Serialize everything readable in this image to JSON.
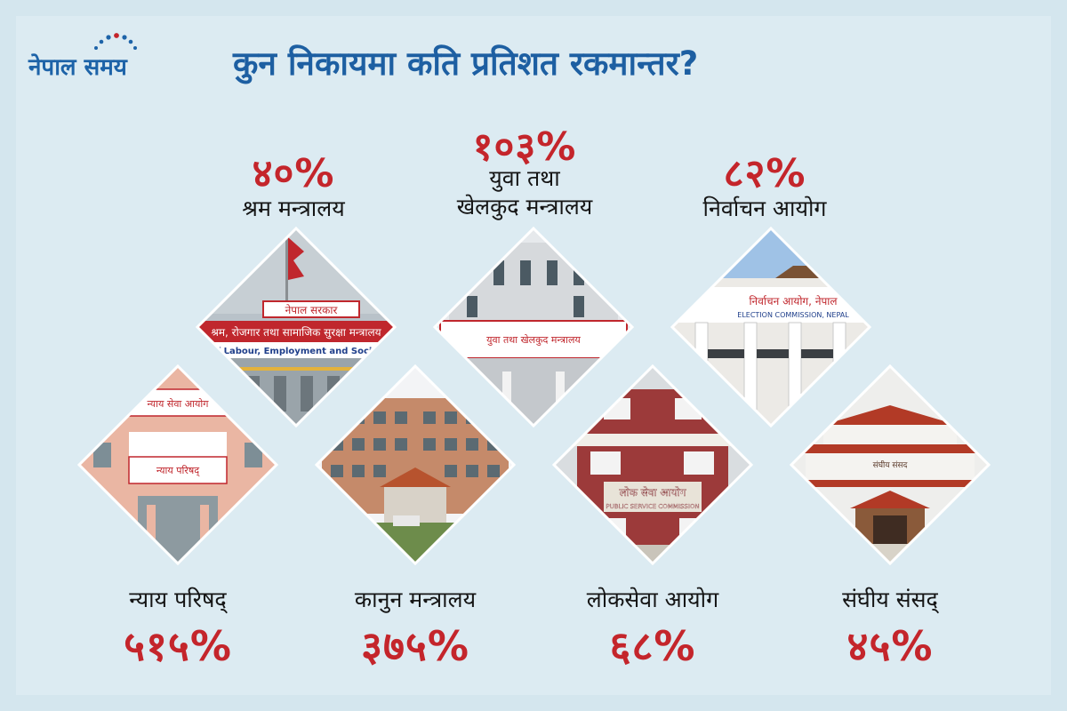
{
  "brand": {
    "name": "नेपाल समय"
  },
  "title": "कुन निकायमा कति प्रतिशत रकमान्तर?",
  "colors": {
    "title": "#1d5fa2",
    "percent": "#c4252b",
    "background": "#dcebf2"
  },
  "items": [
    {
      "percent": "४०%",
      "label": "श्रम मन्त्रालय",
      "sign_top": "नेपाल सरकार",
      "sign_mid": "श्रम, रोजगार तथा सामाजिक सुरक्षा मन्त्रालय",
      "sign_en": "Ministry of Labour, Employment and Social Security"
    },
    {
      "percent": "१०३%",
      "label_line1": "युवा तथा",
      "label_line2": "खेलकुद मन्त्रालय",
      "sign": "युवा तथा खेलकुद मन्त्रालय"
    },
    {
      "percent": "८२%",
      "label": "निर्वाचन आयोग",
      "sign_np": "निर्वाचन आयोग, नेपाल",
      "sign_en": "ELECTION COMMISSION, NEPAL"
    },
    {
      "percent": "५१५%",
      "label": "न्याय परिषद्",
      "sign_top": "न्याय सेवा आयोग",
      "sign_mid": "न्याय परिषद्"
    },
    {
      "percent": "३७५%",
      "label": "कानुन मन्त्रालय"
    },
    {
      "percent": "६८%",
      "label": "लोकसेवा आयोग",
      "sign_np": "लोक सेवा आयोग",
      "sign_en": "PUBLIC SERVICE COMMISSION"
    },
    {
      "percent": "४५%",
      "label": "संघीय संसद्",
      "sign": "संघीय संसद"
    }
  ]
}
